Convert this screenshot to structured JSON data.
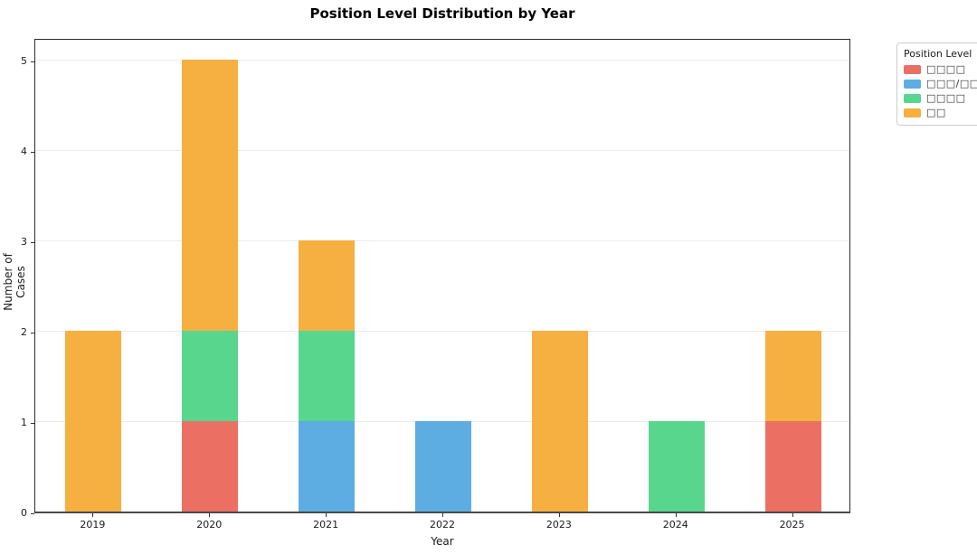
{
  "title": "Position Level Distribution by Year",
  "axes": {
    "xlabel": "Year",
    "ylabel": "Number of Cases",
    "xtick_labels": [
      "2019",
      "2020",
      "2021",
      "2022",
      "2023",
      "2024",
      "2025"
    ],
    "ytick_labels": [
      "0",
      "1",
      "2",
      "3",
      "4",
      "5"
    ]
  },
  "legend": {
    "title": "Position Level",
    "items": [
      {
        "label": "□□□□",
        "color": "#EC6F63"
      },
      {
        "label": "□□□/□□□",
        "color": "#5DADE2"
      },
      {
        "label": "□□□□",
        "color": "#58D68E"
      },
      {
        "label": "□□",
        "color": "#F5B041"
      }
    ]
  },
  "chart_data": {
    "type": "bar",
    "stacked": true,
    "title": "Position Level Distribution by Year",
    "xlabel": "Year",
    "ylabel": "Number of Cases",
    "categories": [
      "2019",
      "2020",
      "2021",
      "2022",
      "2023",
      "2024",
      "2025"
    ],
    "series": [
      {
        "name": "□□□□",
        "color": "#EC6F63",
        "values": [
          0,
          1,
          0,
          0,
          0,
          0,
          1
        ]
      },
      {
        "name": "□□□/□□□",
        "color": "#5DADE2",
        "values": [
          0,
          0,
          1,
          1,
          0,
          0,
          0
        ]
      },
      {
        "name": "□□□□",
        "color": "#58D68E",
        "values": [
          0,
          1,
          1,
          0,
          0,
          1,
          0
        ]
      },
      {
        "name": "□□",
        "color": "#F5B041",
        "values": [
          2,
          3,
          1,
          0,
          2,
          0,
          1
        ]
      }
    ],
    "totals": [
      2,
      5,
      3,
      1,
      2,
      1,
      2
    ],
    "ylim": [
      0,
      5.25
    ],
    "yticks": [
      0,
      1,
      2,
      3,
      4,
      5
    ],
    "grid": "horizontal",
    "legend_title": "Position Level",
    "legend_position": "outside-upper-right"
  }
}
